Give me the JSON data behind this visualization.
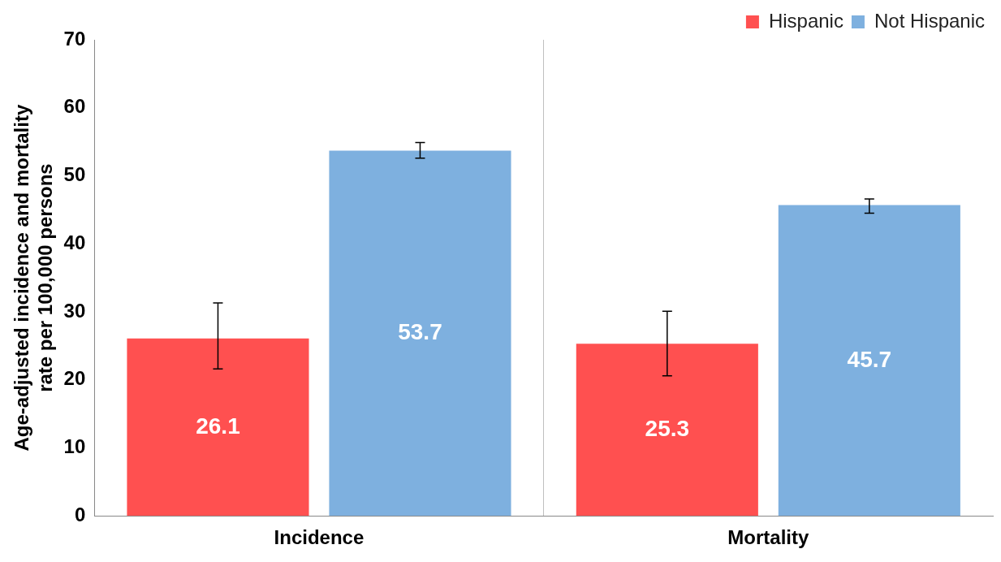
{
  "chart_data": {
    "type": "bar",
    "ylabel": "Age-adjusted incidence and mortality\nrate per 100,000 persons",
    "categories": [
      "Incidence",
      "Mortality"
    ],
    "series": [
      {
        "name": "Hispanic",
        "color": "#ff5050",
        "values": [
          26.1,
          25.3
        ],
        "errors": [
          [
            21.6,
            31.3
          ],
          [
            20.6,
            30.1
          ]
        ]
      },
      {
        "name": "Not Hispanic",
        "color": "#7eb0df",
        "values": [
          53.7,
          45.7
        ],
        "errors": [
          [
            52.6,
            54.9
          ],
          [
            44.5,
            46.6
          ]
        ]
      }
    ],
    "ylim": [
      0,
      70
    ],
    "yticks": [
      0,
      10,
      20,
      30,
      40,
      50,
      60,
      70
    ],
    "data_labels": true,
    "legend": "top right"
  }
}
